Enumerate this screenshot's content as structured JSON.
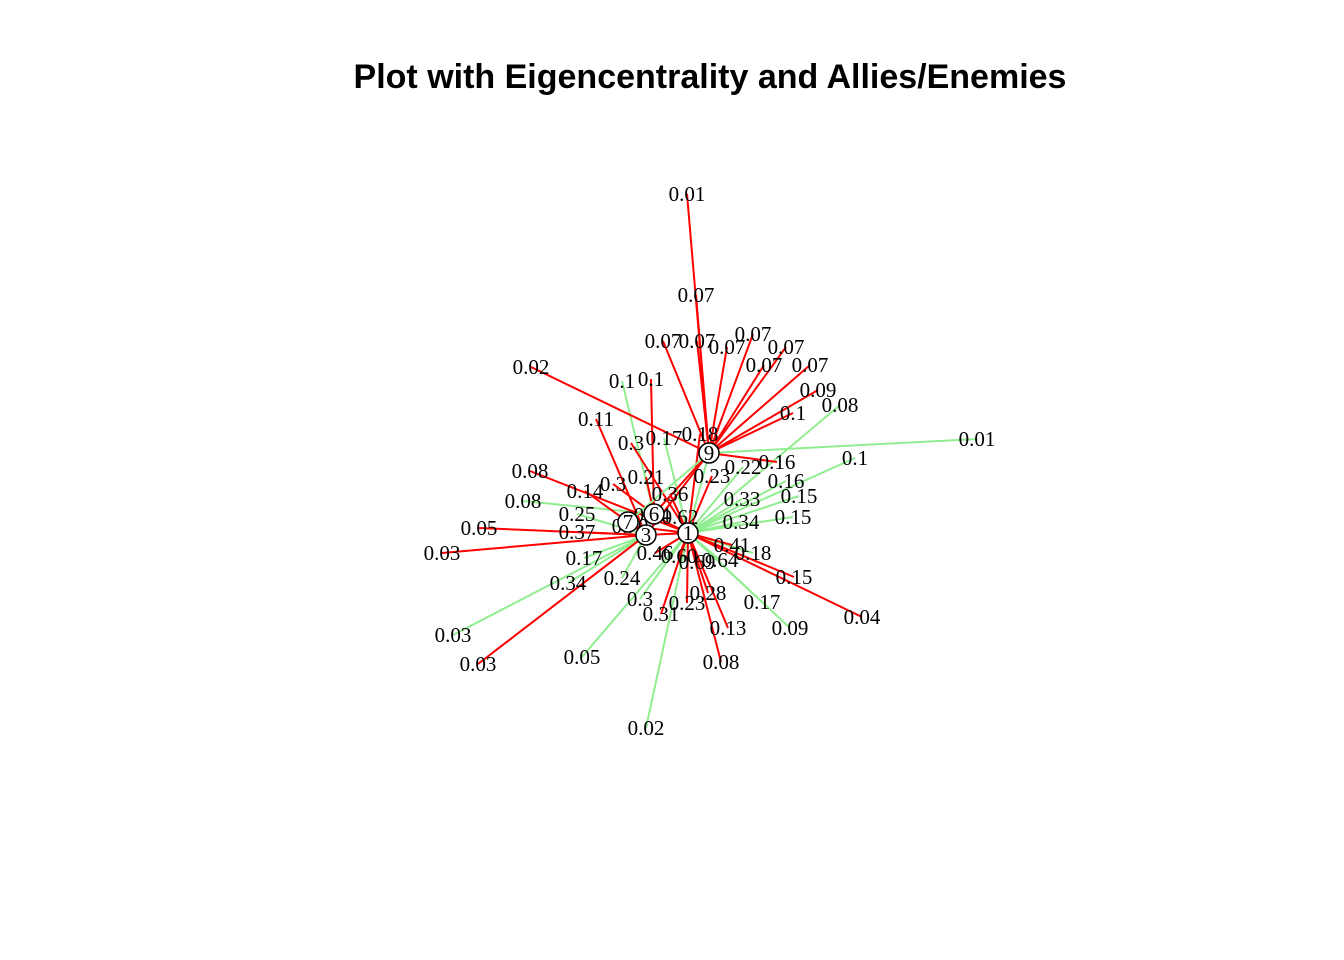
{
  "title": "Plot with Eigencentrality and Allies/Enemies",
  "colors": {
    "ally": "#90EE90",
    "enemy": "#FF0000",
    "node_fill": "#FFFFFF",
    "node_stroke": "#000000",
    "background": "#FFFFFF"
  },
  "legend": null,
  "hubs": [
    {
      "id": "hub-9",
      "label": "9"
    },
    {
      "id": "hub-1",
      "label": "1"
    },
    {
      "id": "hub-3",
      "label": "3"
    },
    {
      "id": "hub-6",
      "label": "6"
    },
    {
      "id": "hub-7",
      "label": "7"
    }
  ],
  "nodes": [
    {
      "id": "n01",
      "label": "0.01",
      "hub": "hub-9",
      "relation": "enemy"
    },
    {
      "id": "n02",
      "label": "0.07",
      "hub": "hub-9",
      "relation": "enemy"
    },
    {
      "id": "n03",
      "label": "0.07",
      "hub": "hub-9",
      "relation": "enemy"
    },
    {
      "id": "n04",
      "label": "0.07",
      "hub": "hub-9",
      "relation": "enemy"
    },
    {
      "id": "n05",
      "label": "0.07",
      "hub": "hub-9",
      "relation": "enemy"
    },
    {
      "id": "n06",
      "label": "0.07",
      "hub": "hub-9",
      "relation": "enemy"
    },
    {
      "id": "n07",
      "label": "0.07",
      "hub": "hub-9",
      "relation": "enemy"
    },
    {
      "id": "n08",
      "label": "0.07",
      "hub": "hub-9",
      "relation": "enemy"
    },
    {
      "id": "n09",
      "label": "0.07",
      "hub": "hub-9",
      "relation": "enemy"
    },
    {
      "id": "n10",
      "label": "0.02",
      "hub": "hub-9",
      "relation": "enemy"
    },
    {
      "id": "n11",
      "label": "0.1",
      "hub": "hub-6",
      "relation": "ally"
    },
    {
      "id": "n12",
      "label": "0.1",
      "hub": "hub-6",
      "relation": "enemy"
    },
    {
      "id": "n13",
      "label": "0.09",
      "hub": "hub-9",
      "relation": "enemy"
    },
    {
      "id": "n14",
      "label": "0.08",
      "hub": "hub-1",
      "relation": "ally"
    },
    {
      "id": "n15",
      "label": "0.1",
      "hub": "hub-9",
      "relation": "enemy"
    },
    {
      "id": "n16",
      "label": "0.11",
      "hub": "hub-3",
      "relation": "enemy"
    },
    {
      "id": "n17",
      "label": "0.01",
      "hub": "hub-9",
      "relation": "ally"
    },
    {
      "id": "n18",
      "label": "0.1",
      "hub": "hub-1",
      "relation": "ally"
    },
    {
      "id": "n19",
      "label": "0.3",
      "hub": "hub-1",
      "relation": "enemy"
    },
    {
      "id": "n20",
      "label": "0.17",
      "hub": "hub-1",
      "relation": "ally"
    },
    {
      "id": "n21",
      "label": "0.18",
      "hub": "hub-1",
      "relation": "enemy"
    },
    {
      "id": "n22",
      "label": "0.22",
      "hub": "hub-1",
      "relation": "ally"
    },
    {
      "id": "n23",
      "label": "0.16",
      "hub": "hub-9",
      "relation": "enemy"
    },
    {
      "id": "n24",
      "label": "0.16",
      "hub": "hub-1",
      "relation": "ally"
    },
    {
      "id": "n25",
      "label": "0.08",
      "hub": "hub-1",
      "relation": "enemy"
    },
    {
      "id": "n26",
      "label": "0.08",
      "hub": "hub-6",
      "relation": "ally"
    },
    {
      "id": "n27",
      "label": "0.21",
      "hub": "hub-6",
      "relation": "enemy"
    },
    {
      "id": "n28",
      "label": "0.23",
      "hub": "hub-1",
      "relation": "enemy"
    },
    {
      "id": "n29",
      "label": "0.15",
      "hub": "hub-1",
      "relation": "ally"
    },
    {
      "id": "n30",
      "label": "0.14",
      "hub": "hub-3",
      "relation": "enemy"
    },
    {
      "id": "n31",
      "label": "0.3",
      "hub": "hub-6",
      "relation": "enemy"
    },
    {
      "id": "n32",
      "label": "0.36",
      "hub": "hub-1",
      "relation": "enemy"
    },
    {
      "id": "n33",
      "label": "0.33",
      "hub": "hub-1",
      "relation": "ally"
    },
    {
      "id": "n34",
      "label": "0.15",
      "hub": "hub-1",
      "relation": "ally"
    },
    {
      "id": "n35",
      "label": "0.05",
      "hub": "hub-3",
      "relation": "enemy"
    },
    {
      "id": "n36",
      "label": "0.25",
      "hub": "hub-3",
      "relation": "ally"
    },
    {
      "id": "n37",
      "label": "0.54",
      "hub": "hub-1",
      "relation": "enemy"
    },
    {
      "id": "n38",
      "label": "0.62",
      "hub": "hub-1",
      "relation": "enemy"
    },
    {
      "id": "n39",
      "label": "0.34",
      "hub": "hub-1",
      "relation": "ally"
    },
    {
      "id": "n40",
      "label": "0.37",
      "hub": "hub-3",
      "relation": "enemy"
    },
    {
      "id": "n41",
      "label": "0.70",
      "hub": "hub-1",
      "relation": "enemy"
    },
    {
      "id": "n42",
      "label": "0.03",
      "hub": "hub-3",
      "relation": "enemy"
    },
    {
      "id": "n43",
      "label": "0.41",
      "hub": "hub-1",
      "relation": "enemy"
    },
    {
      "id": "n44",
      "label": "0.18",
      "hub": "hub-1",
      "relation": "ally"
    },
    {
      "id": "n45",
      "label": "0.17",
      "hub": "hub-3",
      "relation": "ally"
    },
    {
      "id": "n46",
      "label": "0.46",
      "hub": "hub-1",
      "relation": "enemy"
    },
    {
      "id": "n47",
      "label": "0.60",
      "hub": "hub-1",
      "relation": "enemy"
    },
    {
      "id": "n48",
      "label": "0.69",
      "hub": "hub-1",
      "relation": "enemy"
    },
    {
      "id": "n49",
      "label": "0.64",
      "hub": "hub-1",
      "relation": "ally"
    },
    {
      "id": "n50",
      "label": "0.24",
      "hub": "hub-3",
      "relation": "ally"
    },
    {
      "id": "n51",
      "label": "0.34",
      "hub": "hub-3",
      "relation": "ally"
    },
    {
      "id": "n52",
      "label": "0.15",
      "hub": "hub-1",
      "relation": "enemy"
    },
    {
      "id": "n53",
      "label": "0.3",
      "hub": "hub-1",
      "relation": "ally"
    },
    {
      "id": "n54",
      "label": "0.28",
      "hub": "hub-1",
      "relation": "enemy"
    },
    {
      "id": "n55",
      "label": "0.23",
      "hub": "hub-1",
      "relation": "enemy"
    },
    {
      "id": "n56",
      "label": "0.17",
      "hub": "hub-1",
      "relation": "ally"
    },
    {
      "id": "n57",
      "label": "0.04",
      "hub": "hub-1",
      "relation": "enemy"
    },
    {
      "id": "n58",
      "label": "0.31",
      "hub": "hub-1",
      "relation": "enemy"
    },
    {
      "id": "n59",
      "label": "0.03",
      "hub": "hub-3",
      "relation": "ally"
    },
    {
      "id": "n60",
      "label": "0.13",
      "hub": "hub-1",
      "relation": "enemy"
    },
    {
      "id": "n61",
      "label": "0.09",
      "hub": "hub-1",
      "relation": "ally"
    },
    {
      "id": "n62",
      "label": "0.03",
      "hub": "hub-3",
      "relation": "enemy"
    },
    {
      "id": "n63",
      "label": "0.05",
      "hub": "hub-1",
      "relation": "ally"
    },
    {
      "id": "n64",
      "label": "0.08",
      "hub": "hub-1",
      "relation": "enemy"
    },
    {
      "id": "n65",
      "label": "0.02",
      "hub": "hub-1",
      "relation": "ally"
    }
  ]
}
